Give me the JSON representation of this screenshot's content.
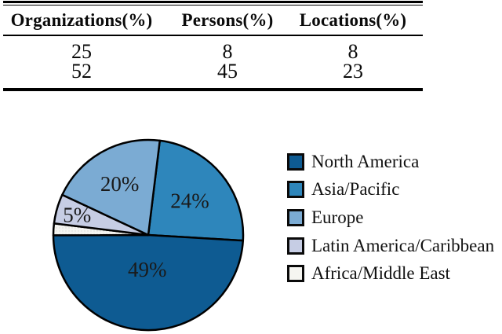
{
  "chart_data": [
    {
      "type": "table",
      "columns": [
        "Organizations(%)",
        "Persons(%)",
        "Locations(%)"
      ],
      "rows": [
        [
          "25",
          "8",
          "8"
        ],
        [
          "52",
          "45",
          "23"
        ]
      ]
    },
    {
      "type": "pie",
      "categories": [
        "North America",
        "Asia/Pacific",
        "Europe",
        "Latin America/Caribbean",
        "Africa/Middle East"
      ],
      "values": [
        49,
        24,
        20,
        5,
        2
      ],
      "data_labels": [
        "49%",
        "24%",
        "20%",
        "5%",
        ""
      ],
      "colors": [
        "#0e5b92",
        "#2e86bb",
        "#7babd3",
        "#c6cde4",
        "#f5f5f1"
      ],
      "textures": [
        null,
        null,
        null,
        null,
        "dots"
      ],
      "texture_dot_color": "#d9d9d3",
      "outline_color": "#000000",
      "outline_width": 2.5,
      "start_angle_deg_clockwise_from_12": 7,
      "direction": "clockwise",
      "draw_order": [
        1,
        0,
        4,
        3,
        2
      ],
      "label_radius": [
        0.36,
        0.57,
        0.62,
        0.78,
        0
      ],
      "legend_position": "right"
    }
  ]
}
